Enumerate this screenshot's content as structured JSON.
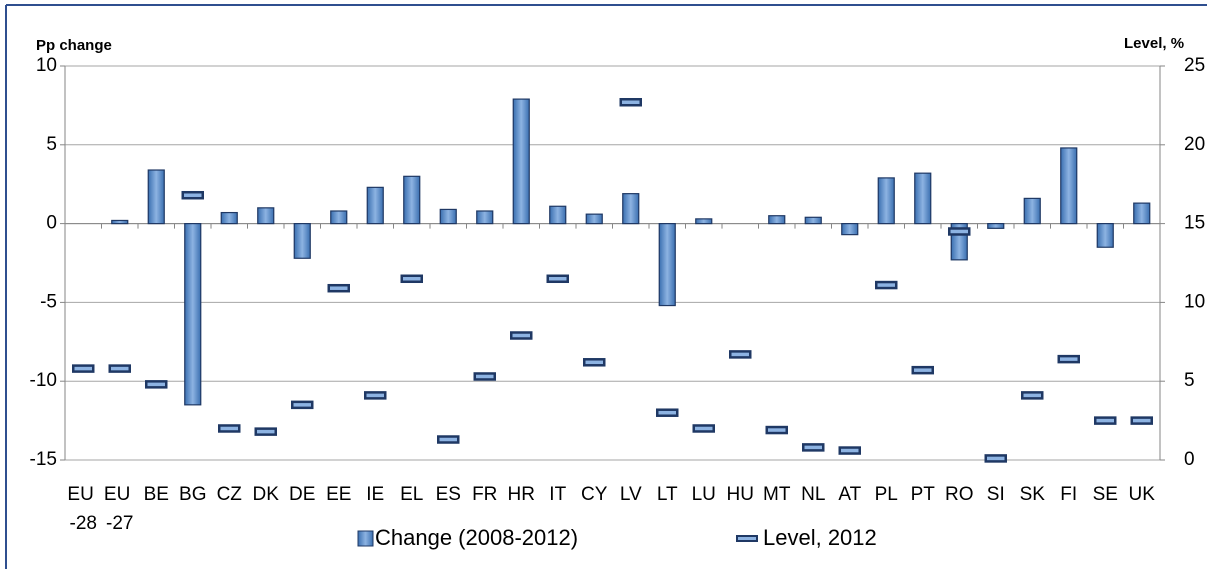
{
  "chart_data": {
    "type": "bar+marker",
    "y_label": "Pp change",
    "y2_label": "Level, %",
    "categories": [
      "EU -28",
      "EU -27",
      "BE",
      "BG",
      "CZ",
      "DK",
      "DE",
      "EE",
      "IE",
      "EL",
      "ES",
      "FR",
      "HR",
      "IT",
      "CY",
      "LV",
      "LT",
      "LU",
      "HU",
      "MT",
      "NL",
      "AT",
      "PL",
      "PT",
      "RO",
      "SI",
      "SK",
      "FI",
      "SE",
      "UK"
    ],
    "series": [
      {
        "name": "Change (2008-2012)",
        "type": "bar",
        "color": "#4f81bd",
        "values": [
          null,
          0.2,
          3.4,
          -11.5,
          0.7,
          1.0,
          -2.2,
          0.8,
          2.3,
          3.0,
          0.9,
          0.8,
          7.9,
          1.1,
          0.6,
          1.9,
          -5.2,
          0.3,
          null,
          0.5,
          0.4,
          -0.7,
          2.9,
          3.2,
          -2.3,
          -0.3,
          1.6,
          4.8,
          -1.5,
          1.3
        ]
      },
      {
        "name": "Level, 2012",
        "type": "marker",
        "axis": "y2",
        "color": "#1f3864",
        "values": [
          5.8,
          5.8,
          4.8,
          16.8,
          2.0,
          1.8,
          3.5,
          10.9,
          4.1,
          11.5,
          1.3,
          5.3,
          7.9,
          11.5,
          6.2,
          22.7,
          3.0,
          2.0,
          6.7,
          1.9,
          0.8,
          0.6,
          11.1,
          5.7,
          14.5,
          0.1,
          4.1,
          6.4,
          2.5,
          2.5
        ]
      }
    ],
    "ylim": [
      -15,
      10
    ],
    "yticks": [
      -15,
      -10,
      -5,
      0,
      5,
      10
    ],
    "y2lim": [
      0,
      25
    ],
    "y2ticks": [
      0,
      5,
      10,
      15,
      20,
      25
    ],
    "grid": true
  }
}
